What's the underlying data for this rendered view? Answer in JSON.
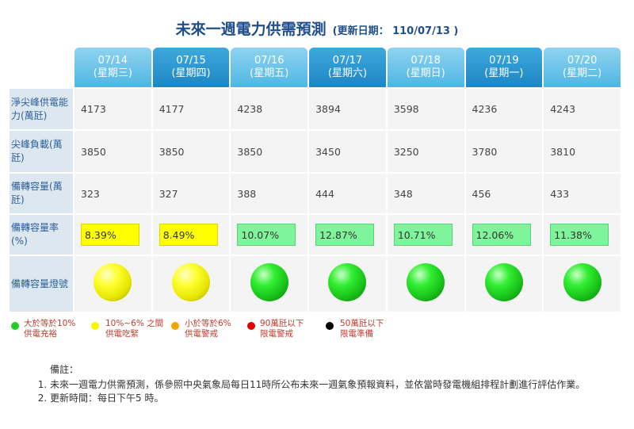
{
  "title": "未來一週電力供需預測",
  "updated": "(更新日期： 110/07/13 )",
  "days": [
    {
      "date": "07/14",
      "weekday": "(星期三)",
      "capacity": "4173",
      "peak_load": "3850",
      "reserve": "323",
      "rate": "8.39%",
      "rate_color": "yellow",
      "light": "yellow"
    },
    {
      "date": "07/15",
      "weekday": "(星期四)",
      "capacity": "4177",
      "peak_load": "3850",
      "reserve": "327",
      "rate": "8.49%",
      "rate_color": "yellow",
      "light": "yellow"
    },
    {
      "date": "07/16",
      "weekday": "(星期五)",
      "capacity": "4238",
      "peak_load": "3850",
      "reserve": "388",
      "rate": "10.07%",
      "rate_color": "green",
      "light": "green"
    },
    {
      "date": "07/17",
      "weekday": "(星期六)",
      "capacity": "3894",
      "peak_load": "3450",
      "reserve": "444",
      "rate": "12.87%",
      "rate_color": "green",
      "light": "green"
    },
    {
      "date": "07/18",
      "weekday": "(星期日)",
      "capacity": "3598",
      "peak_load": "3250",
      "reserve": "348",
      "rate": "10.71%",
      "rate_color": "green",
      "light": "green"
    },
    {
      "date": "07/19",
      "weekday": "(星期一)",
      "capacity": "4236",
      "peak_load": "3780",
      "reserve": "456",
      "rate": "12.06%",
      "rate_color": "green",
      "light": "green"
    },
    {
      "date": "07/20",
      "weekday": "(星期二)",
      "capacity": "4243",
      "peak_load": "3810",
      "reserve": "433",
      "rate": "11.38%",
      "rate_color": "green",
      "light": "green"
    }
  ],
  "rows": {
    "capacity": "淨尖峰供電能力(萬瓩)",
    "peak_load": "尖峰負載(萬瓩)",
    "reserve": "備轉容量(萬瓩)",
    "rate": "備轉容量率(%)",
    "light": "備轉容量燈號"
  },
  "legend": [
    {
      "color": "#22cc22",
      "line1": "大於等於10%",
      "line2": "供電充裕"
    },
    {
      "color": "#f5f500",
      "line1": "10%~6% 之間",
      "line2": "供電吃緊"
    },
    {
      "color": "#f5a300",
      "line1": "小於等於6%",
      "line2": "供電警戒"
    },
    {
      "color": "#e00000",
      "line1": "90萬瓩以下",
      "line2": "限電警戒"
    },
    {
      "color": "#000000",
      "line1": "50萬瓩以下",
      "line2": "限電準備"
    }
  ],
  "notes": {
    "header": "備註：",
    "items": [
      "未來一週電力供需預測，係參照中央氣象局每日11時所公布未來一週氣象預報資料，並依當時發電機組排程計劃進行評估作業。",
      "更新時間：每日下午5 時。"
    ]
  }
}
